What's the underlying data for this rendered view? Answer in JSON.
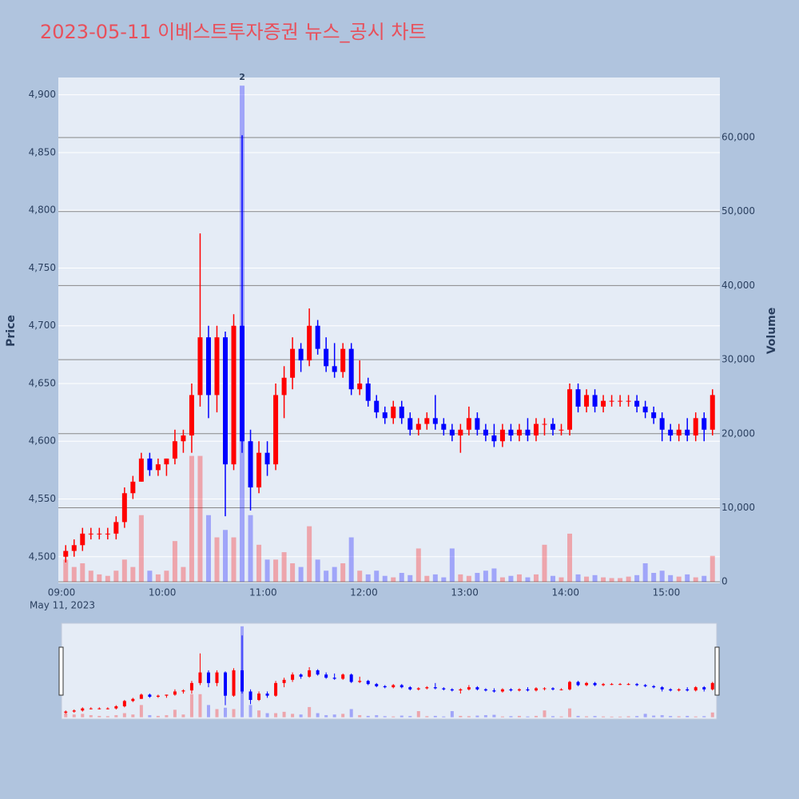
{
  "chart_data": {
    "type": "candlestick",
    "title": "2023-05-11 이베스트투자증권 뉴스_공시 차트",
    "title_color": "#e8505b",
    "y_label": "Price",
    "y2_label": "Volume",
    "date_label": "May 11, 2023",
    "up_color": "#ff0000",
    "down_color": "#0000ff",
    "annotation": {
      "text": "2",
      "x": "10:45"
    },
    "x": [
      "09:00",
      "09:05",
      "09:10",
      "09:15",
      "09:20",
      "09:25",
      "09:30",
      "09:35",
      "09:40",
      "09:45",
      "09:50",
      "09:55",
      "10:00",
      "10:05",
      "10:10",
      "10:15",
      "10:20",
      "10:25",
      "10:30",
      "10:35",
      "10:40",
      "10:45",
      "10:50",
      "10:55",
      "11:00",
      "11:05",
      "11:10",
      "11:15",
      "11:20",
      "11:25",
      "11:30",
      "11:35",
      "11:40",
      "11:45",
      "11:50",
      "11:55",
      "12:00",
      "12:05",
      "12:10",
      "12:15",
      "12:20",
      "12:25",
      "12:30",
      "12:35",
      "12:40",
      "12:45",
      "12:50",
      "12:55",
      "13:00",
      "13:05",
      "13:10",
      "13:15",
      "13:20",
      "13:25",
      "13:30",
      "13:35",
      "13:40",
      "13:45",
      "13:50",
      "13:55",
      "14:00",
      "14:05",
      "14:10",
      "14:15",
      "14:20",
      "14:25",
      "14:30",
      "14:35",
      "14:40",
      "14:45",
      "14:50",
      "14:55",
      "15:00",
      "15:05",
      "15:10",
      "15:15",
      "15:20",
      "15:25"
    ],
    "open": [
      4500,
      4505,
      4510,
      4520,
      4520,
      4520,
      4520,
      4530,
      4555,
      4565,
      4585,
      4575,
      4580,
      4585,
      4600,
      4605,
      4640,
      4690,
      4640,
      4690,
      4580,
      4700,
      4600,
      4560,
      4590,
      4580,
      4640,
      4655,
      4680,
      4670,
      4700,
      4680,
      4665,
      4660,
      4680,
      4645,
      4650,
      4635,
      4625,
      4620,
      4630,
      4620,
      4610,
      4615,
      4620,
      4615,
      4610,
      4605,
      4610,
      4620,
      4610,
      4605,
      4600,
      4610,
      4605,
      4610,
      4605,
      4615,
      4615,
      4610,
      4610,
      4645,
      4630,
      4640,
      4630,
      4635,
      4635,
      4635,
      4635,
      4630,
      4625,
      4620,
      4610,
      4605,
      4610,
      4605,
      4620,
      4610
    ],
    "high": [
      4510,
      4515,
      4525,
      4525,
      4525,
      4525,
      4535,
      4560,
      4570,
      4590,
      4590,
      4585,
      4585,
      4610,
      4610,
      4650,
      4780,
      4700,
      4700,
      4695,
      4710,
      4865,
      4610,
      4600,
      4600,
      4650,
      4665,
      4690,
      4685,
      4715,
      4705,
      4690,
      4685,
      4685,
      4685,
      4670,
      4655,
      4640,
      4630,
      4635,
      4635,
      4625,
      4620,
      4625,
      4640,
      4620,
      4615,
      4615,
      4630,
      4625,
      4615,
      4615,
      4615,
      4615,
      4615,
      4620,
      4620,
      4620,
      4620,
      4615,
      4650,
      4650,
      4645,
      4645,
      4640,
      4640,
      4640,
      4640,
      4640,
      4635,
      4630,
      4625,
      4615,
      4615,
      4620,
      4625,
      4625,
      4645
    ],
    "low": [
      4495,
      4500,
      4505,
      4515,
      4515,
      4515,
      4515,
      4525,
      4550,
      4565,
      4570,
      4570,
      4570,
      4580,
      4590,
      4590,
      4630,
      4620,
      4625,
      4535,
      4575,
      4590,
      4540,
      4555,
      4570,
      4575,
      4620,
      4645,
      4660,
      4665,
      4675,
      4660,
      4655,
      4655,
      4640,
      4640,
      4630,
      4620,
      4615,
      4615,
      4615,
      4605,
      4605,
      4610,
      4610,
      4605,
      4600,
      4590,
      4605,
      4605,
      4600,
      4595,
      4595,
      4600,
      4600,
      4600,
      4600,
      4605,
      4605,
      4605,
      4605,
      4625,
      4625,
      4625,
      4625,
      4630,
      4630,
      4630,
      4625,
      4620,
      4615,
      4600,
      4600,
      4600,
      4600,
      4600,
      4600,
      4605
    ],
    "close": [
      4505,
      4510,
      4520,
      4520,
      4520,
      4520,
      4530,
      4555,
      4565,
      4585,
      4575,
      4580,
      4585,
      4600,
      4605,
      4640,
      4690,
      4640,
      4690,
      4580,
      4700,
      4600,
      4560,
      4590,
      4580,
      4640,
      4655,
      4680,
      4670,
      4700,
      4680,
      4665,
      4660,
      4680,
      4645,
      4650,
      4635,
      4625,
      4620,
      4630,
      4620,
      4610,
      4615,
      4620,
      4615,
      4610,
      4605,
      4610,
      4620,
      4610,
      4605,
      4600,
      4610,
      4605,
      4610,
      4605,
      4615,
      4615,
      4610,
      4610,
      4645,
      4630,
      4640,
      4630,
      4635,
      4635,
      4635,
      4635,
      4630,
      4625,
      4620,
      4610,
      4605,
      4610,
      4605,
      4620,
      4610,
      4640
    ],
    "volume": [
      3000,
      2000,
      2500,
      1500,
      1000,
      800,
      1500,
      3000,
      2000,
      9000,
      1500,
      1000,
      1500,
      5500,
      2000,
      17000,
      17000,
      9000,
      6000,
      7000,
      6000,
      67000,
      9000,
      5000,
      3000,
      3000,
      4000,
      2500,
      2000,
      7500,
      3000,
      1500,
      2000,
      2500,
      6000,
      1500,
      1000,
      1500,
      800,
      600,
      1200,
      900,
      4500,
      800,
      1000,
      600,
      4500,
      1000,
      800,
      1200,
      1500,
      1800,
      600,
      800,
      1000,
      600,
      1000,
      5000,
      800,
      600,
      6500,
      1000,
      700,
      900,
      600,
      500,
      500,
      700,
      900,
      2500,
      1200,
      1500,
      900,
      700,
      1000,
      600,
      800,
      3500
    ],
    "xlim": [
      "09:00",
      "15:30"
    ],
    "xticks": [
      "09:00",
      "10:00",
      "11:00",
      "12:00",
      "13:00",
      "14:00",
      "15:00"
    ],
    "ylim": [
      4477,
      4915
    ],
    "yticks": [
      {
        "value": 4500,
        "label": "4,500"
      },
      {
        "value": 4550,
        "label": "4,550"
      },
      {
        "value": 4600,
        "label": "4,600"
      },
      {
        "value": 4650,
        "label": "4,650"
      },
      {
        "value": 4700,
        "label": "4,700"
      },
      {
        "value": 4750,
        "label": "4,750"
      },
      {
        "value": 4800,
        "label": "4,800"
      },
      {
        "value": 4850,
        "label": "4,850"
      },
      {
        "value": 4900,
        "label": "4,900"
      }
    ],
    "y2lim": [
      -200,
      68100
    ],
    "y2ticks": [
      0,
      {
        "value": 10000,
        "label": "10,000"
      },
      {
        "value": 20000,
        "label": "20,000"
      },
      {
        "value": 30000,
        "label": "30,000"
      },
      {
        "value": 40000,
        "label": "40,000"
      },
      {
        "value": 50000,
        "label": "50,000"
      },
      {
        "value": 60000,
        "label": "60,000"
      }
    ]
  }
}
